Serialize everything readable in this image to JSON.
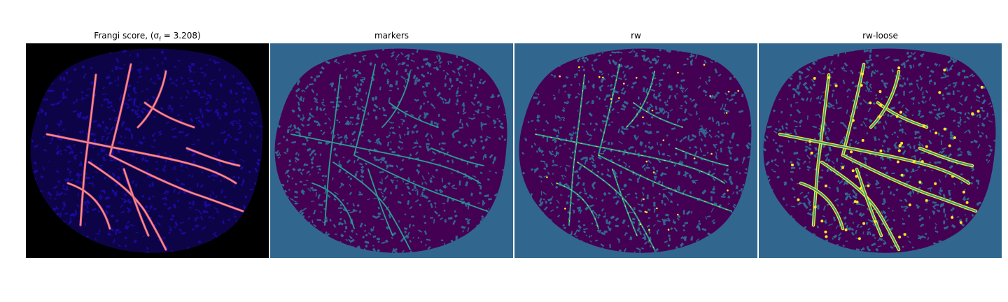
{
  "panels": [
    {
      "title": "Frangi score, (σ",
      "title_sub": "f",
      "title_rest": " = 3.208)",
      "background": "#000000",
      "colormap": "magma"
    },
    {
      "title": "markers",
      "background": "#31678e",
      "colormap": "viridis"
    },
    {
      "title": "rw",
      "background": "#31678e",
      "colormap": "viridis"
    },
    {
      "title": "rw-loose",
      "background": "#31678e",
      "colormap": "viridis"
    }
  ],
  "colors": {
    "viridis_bg": "#31678e",
    "viridis_dark": "#440154",
    "viridis_mid": "#2a9d8f",
    "viridis_yellow": "#fde725",
    "magma_blue": "#1a0a9e",
    "magma_pink": "#e0559c",
    "magma_bright": "#fca45e"
  }
}
